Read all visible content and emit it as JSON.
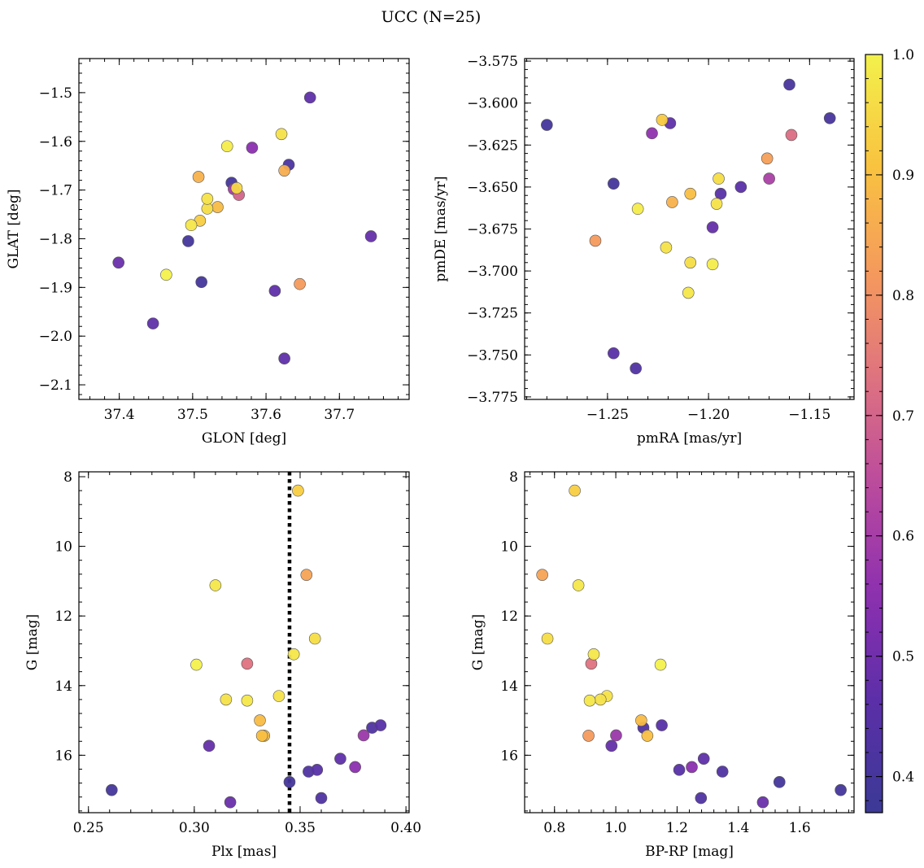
{
  "title": "UCC (N=25)",
  "colors": {
    "colormap": [
      "#3b3a95",
      "#5a2fa8",
      "#8b2fb0",
      "#b9499e",
      "#df7280",
      "#f59a5c",
      "#f9c43f",
      "#f3f14c"
    ],
    "parallax_line": "#000000"
  },
  "colorbar": {
    "vmin": 0.37,
    "vmax": 1.0,
    "ticks": [
      0.4,
      0.5,
      0.6,
      0.7,
      0.8,
      0.9,
      1.0
    ],
    "tick_labels": [
      "0.4",
      "0.5",
      "0.6",
      "0.7",
      "0.8",
      "0.9",
      "1.0"
    ]
  },
  "chart_data": [
    {
      "type": "scatter",
      "xlabel": "GLON [deg]",
      "ylabel": "GLAT [deg]",
      "xlim": [
        37.345,
        37.795
      ],
      "ylim": [
        -2.13,
        -1.43
      ],
      "xticks": [
        37.4,
        37.5,
        37.6,
        37.7
      ],
      "xtick_labels": [
        "37.4",
        "37.5",
        "37.6",
        "37.7"
      ],
      "yticks": [
        -1.5,
        -1.6,
        -1.7,
        -1.8,
        -1.9,
        -2.0,
        -2.1
      ],
      "ytick_labels": [
        "−1.5",
        "−1.6",
        "−1.7",
        "−1.8",
        "−1.9",
        "−2.0",
        "−2.1"
      ],
      "points": [
        {
          "x": 37.66,
          "y": -1.51,
          "c": 0.47
        },
        {
          "x": 37.621,
          "y": -1.585,
          "c": 0.97
        },
        {
          "x": 37.547,
          "y": -1.61,
          "c": 0.99
        },
        {
          "x": 37.581,
          "y": -1.613,
          "c": 0.55
        },
        {
          "x": 37.631,
          "y": -1.648,
          "c": 0.42
        },
        {
          "x": 37.625,
          "y": -1.66,
          "c": 0.86
        },
        {
          "x": 37.508,
          "y": -1.673,
          "c": 0.87
        },
        {
          "x": 37.553,
          "y": -1.685,
          "c": 0.4
        },
        {
          "x": 37.556,
          "y": -1.698,
          "c": 0.6
        },
        {
          "x": 37.56,
          "y": -1.696,
          "c": 0.95
        },
        {
          "x": 37.563,
          "y": -1.71,
          "c": 0.7
        },
        {
          "x": 37.52,
          "y": -1.718,
          "c": 0.97
        },
        {
          "x": 37.534,
          "y": -1.735,
          "c": 0.89
        },
        {
          "x": 37.52,
          "y": -1.738,
          "c": 0.96
        },
        {
          "x": 37.51,
          "y": -1.763,
          "c": 0.93
        },
        {
          "x": 37.498,
          "y": -1.772,
          "c": 0.98
        },
        {
          "x": 37.743,
          "y": -1.795,
          "c": 0.48
        },
        {
          "x": 37.494,
          "y": -1.805,
          "c": 0.4
        },
        {
          "x": 37.399,
          "y": -1.849,
          "c": 0.49
        },
        {
          "x": 37.464,
          "y": -1.874,
          "c": 1.0
        },
        {
          "x": 37.512,
          "y": -1.889,
          "c": 0.4
        },
        {
          "x": 37.646,
          "y": -1.893,
          "c": 0.82
        },
        {
          "x": 37.612,
          "y": -1.907,
          "c": 0.47
        },
        {
          "x": 37.446,
          "y": -1.974,
          "c": 0.47
        },
        {
          "x": 37.625,
          "y": -2.046,
          "c": 0.47
        }
      ]
    },
    {
      "type": "scatter",
      "xlabel": "pmRA [mas/yr]",
      "ylabel": "pmDE [mas/yr]",
      "xlim": [
        -1.291,
        -1.128
      ],
      "ylim": [
        -3.7765,
        -3.5735
      ],
      "xticks": [
        -1.25,
        -1.2,
        -1.15
      ],
      "xtick_labels": [
        "−1.25",
        "−1.20",
        "−1.15"
      ],
      "yticks": [
        -3.575,
        -3.6,
        -3.625,
        -3.65,
        -3.675,
        -3.7,
        -3.725,
        -3.75,
        -3.775
      ],
      "ytick_labels": [
        "−3.575",
        "−3.600",
        "−3.625",
        "−3.650",
        "−3.675",
        "−3.700",
        "−3.725",
        "−3.750",
        "−3.775"
      ],
      "points": [
        {
          "x": -1.16,
          "y": -3.589,
          "c": 0.41
        },
        {
          "x": -1.14,
          "y": -3.609,
          "c": 0.41
        },
        {
          "x": -1.28,
          "y": -3.613,
          "c": 0.4
        },
        {
          "x": -1.223,
          "y": -3.61,
          "c": 0.92
        },
        {
          "x": -1.219,
          "y": -3.612,
          "c": 0.47
        },
        {
          "x": -1.228,
          "y": -3.618,
          "c": 0.56
        },
        {
          "x": -1.159,
          "y": -3.619,
          "c": 0.72
        },
        {
          "x": -1.171,
          "y": -3.633,
          "c": 0.83
        },
        {
          "x": -1.195,
          "y": -3.645,
          "c": 0.96
        },
        {
          "x": -1.17,
          "y": -3.645,
          "c": 0.61
        },
        {
          "x": -1.247,
          "y": -3.648,
          "c": 0.4
        },
        {
          "x": -1.184,
          "y": -3.65,
          "c": 0.46
        },
        {
          "x": -1.194,
          "y": -3.654,
          "c": 0.45
        },
        {
          "x": -1.209,
          "y": -3.654,
          "c": 0.9
        },
        {
          "x": -1.218,
          "y": -3.659,
          "c": 0.87
        },
        {
          "x": -1.196,
          "y": -3.66,
          "c": 0.97
        },
        {
          "x": -1.235,
          "y": -3.663,
          "c": 0.99
        },
        {
          "x": -1.198,
          "y": -3.674,
          "c": 0.48
        },
        {
          "x": -1.256,
          "y": -3.682,
          "c": 0.82
        },
        {
          "x": -1.221,
          "y": -3.686,
          "c": 0.97
        },
        {
          "x": -1.209,
          "y": -3.695,
          "c": 0.96
        },
        {
          "x": -1.198,
          "y": -3.696,
          "c": 0.99
        },
        {
          "x": -1.21,
          "y": -3.713,
          "c": 0.98
        },
        {
          "x": -1.247,
          "y": -3.749,
          "c": 0.46
        },
        {
          "x": -1.236,
          "y": -3.758,
          "c": 0.43
        }
      ]
    },
    {
      "type": "scatter",
      "xlabel": "Plx [mas]",
      "ylabel": "G [mag]",
      "xlim": [
        0.2455,
        0.4015
      ],
      "ylim": [
        17.65,
        7.86
      ],
      "xticks": [
        0.25,
        0.3,
        0.35,
        0.4
      ],
      "xtick_labels": [
        "0.25",
        "0.30",
        "0.35",
        "0.40"
      ],
      "yticks": [
        8,
        10,
        12,
        14,
        16
      ],
      "ytick_labels": [
        "8",
        "10",
        "12",
        "14",
        "16"
      ],
      "vline": 0.345,
      "points": [
        {
          "x": 0.349,
          "y": 8.4,
          "c": 0.93
        },
        {
          "x": 0.353,
          "y": 10.82,
          "c": 0.84
        },
        {
          "x": 0.31,
          "y": 11.12,
          "c": 0.98
        },
        {
          "x": 0.357,
          "y": 12.65,
          "c": 0.96
        },
        {
          "x": 0.347,
          "y": 13.1,
          "c": 0.98
        },
        {
          "x": 0.301,
          "y": 13.4,
          "c": 1.0
        },
        {
          "x": 0.325,
          "y": 13.37,
          "c": 0.73
        },
        {
          "x": 0.34,
          "y": 14.3,
          "c": 0.97
        },
        {
          "x": 0.315,
          "y": 14.4,
          "c": 0.97
        },
        {
          "x": 0.325,
          "y": 14.43,
          "c": 0.98
        },
        {
          "x": 0.331,
          "y": 15.0,
          "c": 0.89
        },
        {
          "x": 0.388,
          "y": 15.14,
          "c": 0.45
        },
        {
          "x": 0.384,
          "y": 15.21,
          "c": 0.43
        },
        {
          "x": 0.38,
          "y": 15.43,
          "c": 0.58
        },
        {
          "x": 0.333,
          "y": 15.44,
          "c": 0.9
        },
        {
          "x": 0.332,
          "y": 15.44,
          "c": 0.9
        },
        {
          "x": 0.307,
          "y": 15.73,
          "c": 0.48
        },
        {
          "x": 0.369,
          "y": 16.1,
          "c": 0.47
        },
        {
          "x": 0.376,
          "y": 16.34,
          "c": 0.55
        },
        {
          "x": 0.358,
          "y": 16.42,
          "c": 0.45
        },
        {
          "x": 0.354,
          "y": 16.47,
          "c": 0.43
        },
        {
          "x": 0.345,
          "y": 16.77,
          "c": 0.4
        },
        {
          "x": 0.261,
          "y": 17.0,
          "c": 0.4
        },
        {
          "x": 0.36,
          "y": 17.23,
          "c": 0.43
        },
        {
          "x": 0.317,
          "y": 17.35,
          "c": 0.49
        }
      ]
    },
    {
      "type": "scatter",
      "xlabel": "BP-RP [mag]",
      "ylabel": "G [mag]",
      "xlim": [
        0.7025,
        1.7775
      ],
      "ylim": [
        17.65,
        7.86
      ],
      "xticks": [
        0.8,
        1.0,
        1.2,
        1.4,
        1.6
      ],
      "xtick_labels": [
        "0.8",
        "1.0",
        "1.2",
        "1.4",
        "1.6"
      ],
      "yticks": [
        8,
        10,
        12,
        14,
        16
      ],
      "ytick_labels": [
        "8",
        "10",
        "12",
        "14",
        "16"
      ],
      "points": [
        {
          "x": 0.866,
          "y": 8.4,
          "c": 0.93
        },
        {
          "x": 0.76,
          "y": 10.82,
          "c": 0.84
        },
        {
          "x": 0.878,
          "y": 11.12,
          "c": 0.98
        },
        {
          "x": 0.777,
          "y": 12.65,
          "c": 0.96
        },
        {
          "x": 0.928,
          "y": 13.1,
          "c": 0.98
        },
        {
          "x": 1.146,
          "y": 13.4,
          "c": 1.0
        },
        {
          "x": 0.92,
          "y": 13.37,
          "c": 0.73
        },
        {
          "x": 0.971,
          "y": 14.3,
          "c": 0.97
        },
        {
          "x": 0.95,
          "y": 14.4,
          "c": 0.97
        },
        {
          "x": 0.915,
          "y": 14.43,
          "c": 0.98
        },
        {
          "x": 1.083,
          "y": 15.0,
          "c": 0.89
        },
        {
          "x": 1.15,
          "y": 15.14,
          "c": 0.45
        },
        {
          "x": 1.09,
          "y": 15.21,
          "c": 0.43
        },
        {
          "x": 1.001,
          "y": 15.43,
          "c": 0.58
        },
        {
          "x": 0.911,
          "y": 15.44,
          "c": 0.82
        },
        {
          "x": 1.103,
          "y": 15.44,
          "c": 0.9
        },
        {
          "x": 0.986,
          "y": 15.73,
          "c": 0.48
        },
        {
          "x": 1.287,
          "y": 16.1,
          "c": 0.47
        },
        {
          "x": 1.248,
          "y": 16.34,
          "c": 0.55
        },
        {
          "x": 1.207,
          "y": 16.42,
          "c": 0.45
        },
        {
          "x": 1.348,
          "y": 16.47,
          "c": 0.43
        },
        {
          "x": 1.534,
          "y": 16.77,
          "c": 0.4
        },
        {
          "x": 1.734,
          "y": 17.0,
          "c": 0.4
        },
        {
          "x": 1.278,
          "y": 17.23,
          "c": 0.43
        },
        {
          "x": 1.48,
          "y": 17.35,
          "c": 0.49
        }
      ]
    }
  ]
}
